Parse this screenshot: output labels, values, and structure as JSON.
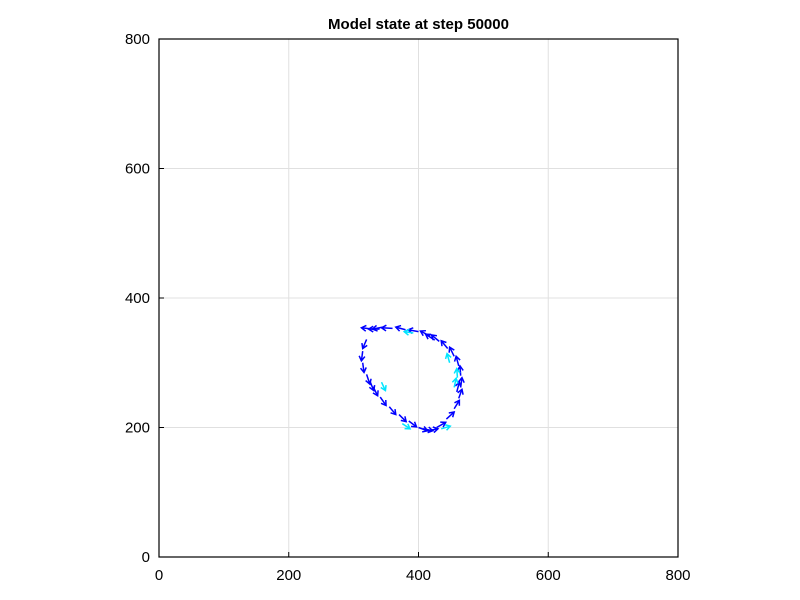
{
  "chart_data": {
    "type": "scatter",
    "title": "Model state at step 50000",
    "xlabel": "",
    "ylabel": "",
    "xlim": [
      0,
      800
    ],
    "ylim": [
      0,
      800
    ],
    "grid": true,
    "xticks": [
      0,
      200,
      400,
      600,
      800
    ],
    "yticks": [
      0,
      200,
      400,
      600,
      800
    ],
    "marker": "arrow",
    "series": [
      {
        "color": "#0000ff",
        "points": [
          [
            330,
            352,
            -18,
            2
          ],
          [
            345,
            355,
            -16,
            -3
          ],
          [
            360,
            353,
            -17,
            1
          ],
          [
            380,
            351,
            -15,
            4
          ],
          [
            400,
            348,
            -16,
            3
          ],
          [
            418,
            341,
            -15,
            8
          ],
          [
            432,
            333,
            -12,
            10
          ],
          [
            445,
            322,
            -10,
            12
          ],
          [
            455,
            310,
            -7,
            14
          ],
          [
            462,
            295,
            -4,
            15
          ],
          [
            465,
            280,
            -1,
            15
          ],
          [
            465,
            262,
            2,
            15
          ],
          [
            462,
            245,
            5,
            14
          ],
          [
            455,
            229,
            8,
            13
          ],
          [
            443,
            213,
            12,
            11
          ],
          [
            428,
            200,
            14,
            8
          ],
          [
            415,
            195,
            15,
            3
          ],
          [
            400,
            200,
            14,
            -5
          ],
          [
            385,
            210,
            12,
            -9
          ],
          [
            370,
            220,
            11,
            -11
          ],
          [
            355,
            232,
            10,
            -12
          ],
          [
            341,
            247,
            9,
            -13
          ],
          [
            330,
            263,
            7,
            -14
          ],
          [
            320,
            282,
            5,
            -15
          ],
          [
            314,
            300,
            2,
            -15
          ],
          [
            314,
            318,
            -2,
            -15
          ],
          [
            320,
            336,
            -6,
            -14
          ],
          [
            340,
            352,
            -17,
            0
          ],
          [
            425,
            335,
            -14,
            9
          ],
          [
            459,
            255,
            4,
            15
          ],
          [
            407,
            198,
            15,
            -3
          ],
          [
            325,
            272,
            6,
            -15
          ]
        ]
      },
      {
        "color": "#00e5ff",
        "points": [
          [
            392,
            346,
            -14,
            2
          ],
          [
            448,
            300,
            -4,
            14
          ],
          [
            460,
            277,
            -1,
            14
          ],
          [
            455,
            262,
            3,
            14
          ],
          [
            435,
            198,
            14,
            4
          ],
          [
            375,
            206,
            12,
            -8
          ],
          [
            343,
            270,
            6,
            -13
          ]
        ]
      }
    ]
  }
}
